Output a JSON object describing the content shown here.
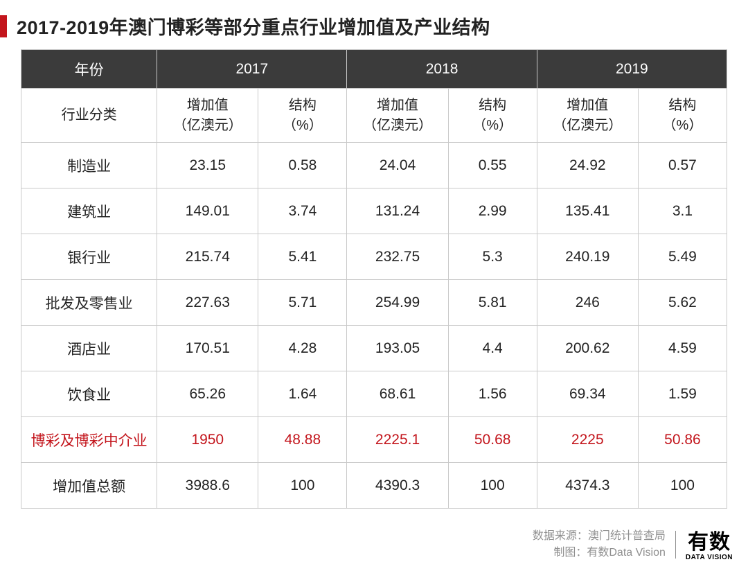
{
  "title": "2017-2019年澳门博彩等部分重点行业增加值及产业结构",
  "table": {
    "header_year_label": "年份",
    "header_category_label": "行业分类",
    "years": [
      "2017",
      "2018",
      "2019"
    ],
    "sub_headers": {
      "value": "增加值\n（亿澳元）",
      "pct": "结构\n（%）"
    },
    "rows": [
      {
        "cat": "制造业",
        "v17": "23.15",
        "p17": "0.58",
        "v18": "24.04",
        "p18": "0.55",
        "v19": "24.92",
        "p19": "0.57",
        "hl": false
      },
      {
        "cat": "建筑业",
        "v17": "149.01",
        "p17": "3.74",
        "v18": "131.24",
        "p18": "2.99",
        "v19": "135.41",
        "p19": "3.1",
        "hl": false
      },
      {
        "cat": "银行业",
        "v17": "215.74",
        "p17": "5.41",
        "v18": "232.75",
        "p18": "5.3",
        "v19": "240.19",
        "p19": "5.49",
        "hl": false
      },
      {
        "cat": "批发及零售业",
        "v17": "227.63",
        "p17": "5.71",
        "v18": "254.99",
        "p18": "5.81",
        "v19": "246",
        "p19": "5.62",
        "hl": false
      },
      {
        "cat": "酒店业",
        "v17": "170.51",
        "p17": "4.28",
        "v18": "193.05",
        "p18": "4.4",
        "v19": "200.62",
        "p19": "4.59",
        "hl": false
      },
      {
        "cat": "饮食业",
        "v17": "65.26",
        "p17": "1.64",
        "v18": "68.61",
        "p18": "1.56",
        "v19": "69.34",
        "p19": "1.59",
        "hl": false
      },
      {
        "cat": "博彩及博彩中介业",
        "v17": "1950",
        "p17": "48.88",
        "v18": "2225.1",
        "p18": "50.68",
        "v19": "2225",
        "p19": "50.86",
        "hl": true
      },
      {
        "cat": "增加值总额",
        "v17": "3988.6",
        "p17": "100",
        "v18": "4390.3",
        "p18": "100",
        "v19": "4374.3",
        "p19": "100",
        "hl": false
      }
    ]
  },
  "footer": {
    "source_line": "数据来源：澳门统计普查局",
    "maker_line": "制图：有数Data Vision",
    "logo_cn": "有数",
    "logo_en": "DATA VISION"
  },
  "colors": {
    "accent": "#c3151c",
    "header_bg": "#3b3b3b",
    "border": "#c9c9c9",
    "footer_text": "#8f8f8f"
  }
}
